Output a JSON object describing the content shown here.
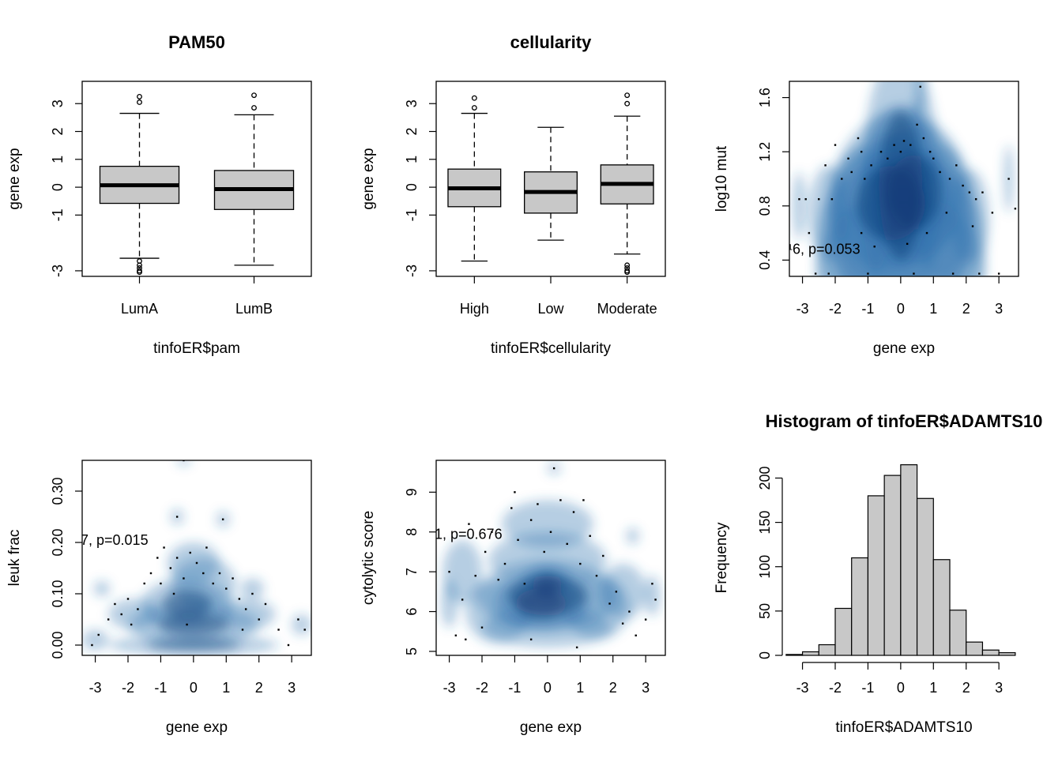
{
  "chart_data": [
    {
      "type": "boxplot",
      "title": "PAM50",
      "xlabel": "tinfoER$pam",
      "ylabel": "gene exp",
      "ylim": [
        -3.2,
        3.8
      ],
      "yticks": [
        -3,
        -1,
        0,
        1,
        2,
        3
      ],
      "categories": [
        "LumA",
        "LumB"
      ],
      "boxes": [
        {
          "min": -2.55,
          "q1": -0.58,
          "median": 0.07,
          "q3": 0.75,
          "max": 2.65,
          "outliers": [
            3.05,
            3.25,
            -2.65,
            -2.8,
            -2.9,
            -3.0,
            -3.05
          ]
        },
        {
          "min": -2.8,
          "q1": -0.8,
          "median": -0.07,
          "q3": 0.6,
          "max": 2.6,
          "outliers": [
            2.85,
            3.3
          ]
        }
      ]
    },
    {
      "type": "boxplot",
      "title": "cellularity",
      "xlabel": "tinfoER$cellularity",
      "ylabel": "gene exp",
      "ylim": [
        -3.2,
        3.8
      ],
      "yticks": [
        -3,
        -1,
        0,
        1,
        2,
        3
      ],
      "categories": [
        "High",
        "Low",
        "Moderate"
      ],
      "boxes": [
        {
          "min": -2.65,
          "q1": -0.7,
          "median": -0.04,
          "q3": 0.65,
          "max": 2.65,
          "outliers": [
            2.85,
            3.2
          ]
        },
        {
          "min": -1.9,
          "q1": -0.93,
          "median": -0.17,
          "q3": 0.55,
          "max": 2.15,
          "outliers": []
        },
        {
          "min": -2.4,
          "q1": -0.6,
          "median": 0.12,
          "q3": 0.8,
          "max": 2.55,
          "outliers": [
            3.0,
            3.3,
            -2.8,
            -2.9,
            -3.0,
            -3.05
          ]
        }
      ]
    },
    {
      "type": "scatter",
      "xlabel": "gene exp",
      "ylabel": "log10 mut",
      "xlim": [
        -3.4,
        3.6
      ],
      "ylim": [
        0.28,
        1.72
      ],
      "xticks": [
        -3,
        -2,
        -1,
        0,
        1,
        2,
        3
      ],
      "yticks": [
        0.4,
        0.8,
        1.2,
        1.6
      ],
      "annotation": "¹6, p=0.053",
      "points": [
        [
          -3.1,
          0.85
        ],
        [
          -2.9,
          0.85
        ],
        [
          -2.8,
          0.6
        ],
        [
          -2.5,
          0.85
        ],
        [
          -2.3,
          1.1
        ],
        [
          -2.1,
          0.85
        ],
        [
          -2.0,
          1.25
        ],
        [
          -1.8,
          1.0
        ],
        [
          -1.6,
          1.15
        ],
        [
          -1.5,
          1.05
        ],
        [
          -1.3,
          1.3
        ],
        [
          -1.2,
          1.2
        ],
        [
          -1.1,
          1.0
        ],
        [
          -0.9,
          1.1
        ],
        [
          -0.6,
          1.2
        ],
        [
          -0.4,
          1.15
        ],
        [
          -0.2,
          1.25
        ],
        [
          0.0,
          1.2
        ],
        [
          0.1,
          1.28
        ],
        [
          0.3,
          1.25
        ],
        [
          0.5,
          1.4
        ],
        [
          0.7,
          1.3
        ],
        [
          0.9,
          1.2
        ],
        [
          1.0,
          1.15
        ],
        [
          1.2,
          1.05
        ],
        [
          1.5,
          1.0
        ],
        [
          1.7,
          1.1
        ],
        [
          1.9,
          0.95
        ],
        [
          2.1,
          0.9
        ],
        [
          2.3,
          0.85
        ],
        [
          2.5,
          0.9
        ],
        [
          2.8,
          0.75
        ],
        [
          3.3,
          1.0
        ],
        [
          3.5,
          0.78
        ],
        [
          -1.2,
          0.6
        ],
        [
          -0.8,
          0.5
        ],
        [
          0.2,
          0.52
        ],
        [
          0.8,
          0.6
        ],
        [
          1.4,
          0.75
        ],
        [
          2.2,
          0.65
        ],
        [
          -2.6,
          0.3
        ],
        [
          -2.2,
          0.3
        ],
        [
          -1.0,
          0.3
        ],
        [
          0.4,
          0.3
        ],
        [
          1.6,
          0.3
        ],
        [
          2.4,
          0.3
        ],
        [
          3.0,
          0.3
        ],
        [
          0.6,
          1.68
        ]
      ],
      "density": [
        [
          0,
          0.95,
          1.2,
          1.0
        ],
        [
          -0.3,
          0.82,
          1.9,
          0.5
        ],
        [
          0.4,
          0.9,
          1.5,
          0.5
        ],
        [
          0,
          0.7,
          2.3,
          0.8
        ],
        [
          -1.2,
          0.72,
          0.9,
          0.5
        ],
        [
          1.3,
          0.74,
          0.9,
          0.5
        ],
        [
          0,
          0.5,
          2.6,
          0.7
        ],
        [
          0,
          0.3,
          2.6,
          0.6
        ],
        [
          0,
          1.15,
          1.1,
          0.4
        ],
        [
          -2.2,
          0.75,
          0.6,
          0.35
        ],
        [
          2.1,
          0.72,
          0.6,
          0.35
        ],
        [
          -3.1,
          0.8,
          0.2,
          0.25
        ],
        [
          3.3,
          1.0,
          0.15,
          0.25
        ],
        [
          0.6,
          1.68,
          0.12,
          0.2
        ],
        [
          0.5,
          1.4,
          0.15,
          0.22
        ]
      ]
    },
    {
      "type": "scatter",
      "xlabel": "gene exp",
      "ylabel": "leuk frac",
      "xlim": [
        -3.4,
        3.6
      ],
      "ylim": [
        -0.02,
        0.36
      ],
      "xticks": [
        -3,
        -2,
        -1,
        0,
        1,
        2,
        3
      ],
      "yticks": [
        0.0,
        0.1,
        0.2,
        0.3
      ],
      "ytick_labels": [
        "0.00",
        "0.10",
        "0.20",
        "0.30"
      ],
      "annotation": "7, p=0.015",
      "points": [
        [
          -3.1,
          0.0
        ],
        [
          -2.9,
          0.02
        ],
        [
          -2.6,
          0.05
        ],
        [
          -2.4,
          0.08
        ],
        [
          -2.2,
          0.06
        ],
        [
          -2.0,
          0.09
        ],
        [
          -1.9,
          0.04
        ],
        [
          -1.7,
          0.07
        ],
        [
          -1.5,
          0.12
        ],
        [
          -1.3,
          0.14
        ],
        [
          -1.1,
          0.17
        ],
        [
          -1.0,
          0.12
        ],
        [
          -0.9,
          0.19
        ],
        [
          -0.7,
          0.15
        ],
        [
          -0.6,
          0.1
        ],
        [
          -0.5,
          0.17
        ],
        [
          -0.3,
          0.13
        ],
        [
          -0.3,
          0.36
        ],
        [
          -0.1,
          0.18
        ],
        [
          0.1,
          0.16
        ],
        [
          0.3,
          0.14
        ],
        [
          0.4,
          0.19
        ],
        [
          0.6,
          0.12
        ],
        [
          0.8,
          0.14
        ],
        [
          1.0,
          0.11
        ],
        [
          1.2,
          0.13
        ],
        [
          1.4,
          0.09
        ],
        [
          1.6,
          0.07
        ],
        [
          1.8,
          0.1
        ],
        [
          2.0,
          0.05
        ],
        [
          2.2,
          0.08
        ],
        [
          2.6,
          0.03
        ],
        [
          2.9,
          0.0
        ],
        [
          3.2,
          0.05
        ],
        [
          3.4,
          0.03
        ],
        [
          0.9,
          0.245
        ],
        [
          -0.5,
          0.25
        ],
        [
          1.5,
          0.03
        ],
        [
          -0.2,
          0.04
        ]
      ],
      "density": [
        [
          0,
          0.0,
          2.6,
          0.02
        ],
        [
          0,
          0.04,
          2.0,
          0.04
        ],
        [
          -0.2,
          0.08,
          1.4,
          0.05
        ],
        [
          0.3,
          0.12,
          1.0,
          0.05
        ],
        [
          -1.8,
          0.06,
          0.8,
          0.03
        ],
        [
          1.6,
          0.06,
          0.9,
          0.03
        ],
        [
          0,
          0.16,
          0.8,
          0.04
        ],
        [
          -3.0,
          0.01,
          0.4,
          0.02
        ],
        [
          3.3,
          0.04,
          0.3,
          0.02
        ],
        [
          -0.3,
          0.36,
          0.2,
          0.01
        ],
        [
          -0.5,
          0.25,
          0.2,
          0.015
        ],
        [
          0.9,
          0.245,
          0.2,
          0.015
        ],
        [
          -2.8,
          0.11,
          0.25,
          0.015
        ],
        [
          1.8,
          0.11,
          0.35,
          0.02
        ]
      ]
    },
    {
      "type": "scatter",
      "xlabel": "gene exp",
      "ylabel": "cytolytic score",
      "xlim": [
        -3.4,
        3.6
      ],
      "ylim": [
        4.9,
        9.8
      ],
      "xticks": [
        -3,
        -2,
        -1,
        0,
        1,
        2,
        3
      ],
      "yticks": [
        5,
        6,
        7,
        8,
        9
      ],
      "annotation": "1, p=0.676",
      "points": [
        [
          -3.0,
          7.0
        ],
        [
          -2.8,
          5.4
        ],
        [
          -2.6,
          6.3
        ],
        [
          -2.4,
          8.2
        ],
        [
          -2.2,
          6.9
        ],
        [
          -2.0,
          5.6
        ],
        [
          -1.9,
          7.5
        ],
        [
          -1.7,
          8.0
        ],
        [
          -1.5,
          6.8
        ],
        [
          -1.3,
          7.2
        ],
        [
          -1.1,
          8.6
        ],
        [
          -1.0,
          9.0
        ],
        [
          -0.9,
          7.8
        ],
        [
          -0.7,
          6.7
        ],
        [
          -0.5,
          8.3
        ],
        [
          -0.3,
          8.7
        ],
        [
          -0.1,
          7.5
        ],
        [
          0.1,
          8.0
        ],
        [
          0.2,
          9.6
        ],
        [
          0.4,
          8.8
        ],
        [
          0.6,
          7.7
        ],
        [
          0.8,
          8.5
        ],
        [
          1.0,
          7.2
        ],
        [
          1.1,
          8.8
        ],
        [
          1.3,
          7.9
        ],
        [
          1.5,
          6.9
        ],
        [
          1.7,
          7.4
        ],
        [
          1.9,
          6.2
        ],
        [
          2.1,
          6.5
        ],
        [
          2.3,
          5.7
        ],
        [
          2.5,
          6.0
        ],
        [
          2.7,
          5.4
        ],
        [
          3.0,
          5.8
        ],
        [
          3.2,
          6.7
        ],
        [
          3.3,
          6.3
        ],
        [
          -0.5,
          5.3
        ],
        [
          0.9,
          5.1
        ],
        [
          -2.5,
          5.3
        ]
      ],
      "density": [
        [
          0,
          6.4,
          2.2,
          0.9
        ],
        [
          -0.2,
          6.2,
          1.4,
          0.7
        ],
        [
          0,
          6.7,
          0.8,
          0.5
        ],
        [
          0,
          7.3,
          1.8,
          0.7
        ],
        [
          -1.5,
          6.0,
          1.0,
          0.8
        ],
        [
          1.5,
          6.1,
          1.0,
          0.8
        ],
        [
          0,
          5.6,
          2.0,
          0.5
        ],
        [
          0,
          8.2,
          1.4,
          0.6
        ],
        [
          -2.6,
          7.0,
          0.6,
          0.8
        ],
        [
          2.3,
          6.5,
          0.7,
          0.7
        ],
        [
          0.2,
          9.6,
          0.2,
          0.15
        ],
        [
          -3.0,
          6.2,
          0.25,
          0.6
        ],
        [
          3.2,
          6.4,
          0.25,
          0.5
        ],
        [
          2.6,
          7.9,
          0.2,
          0.2
        ]
      ]
    },
    {
      "type": "histogram",
      "title": "Histogram of tinfoER$ADAMTS10",
      "xlabel": "tinfoER$ADAMTS10",
      "ylabel": "Frequency",
      "xlim": [
        -3.4,
        3.6
      ],
      "ylim": [
        0,
        220
      ],
      "xticks": [
        -3,
        -2,
        -1,
        0,
        1,
        2,
        3
      ],
      "yticks": [
        0,
        50,
        100,
        150,
        200
      ],
      "bins": [
        {
          "from": -3.5,
          "to": -3.0,
          "count": 1
        },
        {
          "from": -3.0,
          "to": -2.5,
          "count": 4
        },
        {
          "from": -2.5,
          "to": -2.0,
          "count": 12
        },
        {
          "from": -2.0,
          "to": -1.5,
          "count": 53
        },
        {
          "from": -1.5,
          "to": -1.0,
          "count": 110
        },
        {
          "from": -1.0,
          "to": -0.5,
          "count": 180
        },
        {
          "from": -0.5,
          "to": 0.0,
          "count": 203
        },
        {
          "from": 0.0,
          "to": 0.5,
          "count": 215
        },
        {
          "from": 0.5,
          "to": 1.0,
          "count": 177
        },
        {
          "from": 1.0,
          "to": 1.5,
          "count": 108
        },
        {
          "from": 1.5,
          "to": 2.0,
          "count": 51
        },
        {
          "from": 2.0,
          "to": 2.5,
          "count": 15
        },
        {
          "from": 2.5,
          "to": 3.0,
          "count": 6
        },
        {
          "from": 3.0,
          "to": 3.5,
          "count": 3
        }
      ]
    }
  ]
}
